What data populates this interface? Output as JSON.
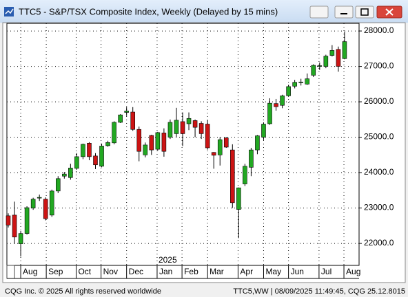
{
  "window_title": "TTC5 - S&P/TSX Composite Index, Weekly (Delayed by 15 mins)",
  "footer": {
    "left": "CQG Inc. © 2025 All rights reserved worldwide",
    "right": "TTC5,WW | 08/09/2025 11:49:45, CQG 25.12.8015"
  },
  "chart_data": {
    "type": "candlestick",
    "annotation": "2025",
    "up_color": "#22a822",
    "down_color": "#cc1414",
    "grid": true,
    "open": [
      22780,
      22800,
      21990,
      22280,
      23000,
      23280,
      23250,
      22800,
      23480,
      23900,
      23860,
      24120,
      24450,
      24830,
      24470,
      24180,
      24760,
      24840,
      25420,
      25700,
      25710,
      25220,
      24500,
      25050,
      24660,
      25120,
      25000,
      25100,
      25440,
      25380,
      25470,
      25390,
      25370,
      24570,
      24500,
      24980,
      24640,
      22960,
      23680,
      24150,
      24640,
      25000,
      25380,
      25950,
      25900,
      26170,
      26440,
      26540,
      26500,
      26750,
      27000,
      27000,
      27310,
      27480,
      27220
    ],
    "high": [
      22850,
      23180,
      22350,
      23050,
      23290,
      23380,
      23300,
      23520,
      23900,
      24020,
      24250,
      24550,
      24820,
      24860,
      24550,
      24820,
      24900,
      25450,
      25650,
      25850,
      25850,
      25300,
      24850,
      25070,
      25150,
      25250,
      25500,
      25830,
      25700,
      25700,
      25500,
      25450,
      25480,
      24580,
      25000,
      25000,
      24800,
      23580,
      24250,
      24700,
      25060,
      25420,
      26100,
      26080,
      26200,
      26480,
      26620,
      26650,
      26800,
      27060,
      27110,
      27330,
      27600,
      27560,
      27980
    ],
    "low": [
      22450,
      21990,
      21630,
      22250,
      22950,
      23200,
      22650,
      22750,
      23420,
      23830,
      23800,
      24080,
      24380,
      24350,
      24100,
      24150,
      24730,
      24800,
      25400,
      25600,
      25180,
      24320,
      24430,
      24500,
      24620,
      24450,
      24950,
      25000,
      24750,
      25200,
      25000,
      24950,
      24650,
      24110,
      24200,
      24700,
      23000,
      22150,
      23620,
      23900,
      24520,
      24920,
      25350,
      25750,
      25820,
      26140,
      26380,
      26460,
      26480,
      26700,
      26900,
      26950,
      27280,
      26850,
      27200
    ],
    "close": [
      22520,
      22180,
      22280,
      23010,
      23250,
      23300,
      22700,
      23480,
      23830,
      23960,
      24130,
      24450,
      24800,
      24450,
      24220,
      24750,
      24850,
      25420,
      25630,
      25740,
      25220,
      24600,
      24780,
      24640,
      25130,
      24600,
      25420,
      25480,
      25100,
      25530,
      25280,
      25100,
      24700,
      24490,
      24930,
      24720,
      23150,
      23570,
      24180,
      24640,
      25040,
      25370,
      25960,
      25860,
      26170,
      26430,
      26550,
      26560,
      26650,
      27030,
      27020,
      27290,
      27450,
      27000,
      27700
    ],
    "xlim": [
      -0.22,
      56.33
    ],
    "xticks": [
      {
        "value": 2,
        "label": "Aug"
      },
      {
        "value": 6.1,
        "label": "Sep"
      },
      {
        "value": 10.9,
        "label": "Oct"
      },
      {
        "value": 14.9,
        "label": "Nov"
      },
      {
        "value": 19,
        "label": "Dec"
      },
      {
        "value": 23.9,
        "label": "Jan"
      },
      {
        "value": 27.9,
        "label": "Feb"
      },
      {
        "value": 32,
        "label": "Mar"
      },
      {
        "value": 36.9,
        "label": "Apr"
      },
      {
        "value": 41,
        "label": "May"
      },
      {
        "value": 45,
        "label": "Jun"
      },
      {
        "value": 49.9,
        "label": "Jul"
      },
      {
        "value": 53.9,
        "label": "Aug"
      }
    ],
    "ylim": [
      21380,
      28215
    ],
    "yticks": [
      {
        "value": 22000,
        "label": "22000.0"
      },
      {
        "value": 23000,
        "label": "23000.0"
      },
      {
        "value": 24000,
        "label": "24000.0"
      },
      {
        "value": 25000,
        "label": "25000.0"
      },
      {
        "value": 26000,
        "label": "26000.0"
      },
      {
        "value": 27000,
        "label": "27000.0"
      },
      {
        "value": 28000,
        "label": "28000.0"
      }
    ]
  }
}
